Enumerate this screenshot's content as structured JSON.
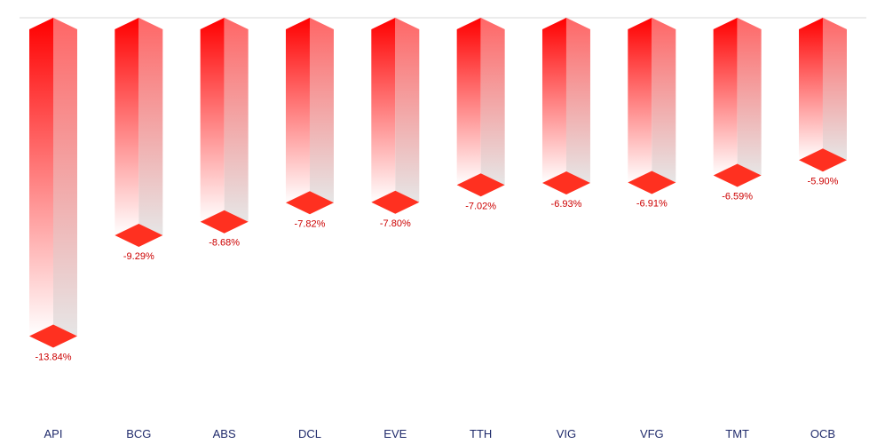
{
  "chart_data": {
    "type": "bar",
    "categories": [
      "API",
      "BCG",
      "ABS",
      "DCL",
      "EVE",
      "TTH",
      "VIG",
      "VFG",
      "TMT",
      "OCB"
    ],
    "values": [
      -13.84,
      -9.29,
      -8.68,
      -7.82,
      -7.8,
      -7.02,
      -6.93,
      -6.91,
      -6.59,
      -5.9
    ],
    "value_labels": [
      "-13.84%",
      "-9.29%",
      "-8.68%",
      "-7.82%",
      "-7.80%",
      "-7.02%",
      "-6.93%",
      "-6.91%",
      "-6.59%",
      "-5.90%"
    ],
    "title": "",
    "xlabel": "",
    "ylabel": "",
    "ylim": [
      -15.7,
      0
    ],
    "grid": false,
    "legend": "none",
    "colors": {
      "bar_top": "#ff0000",
      "bar_bottom": "#ffffff",
      "bar_side_top": "#ff6666",
      "bar_side_bottom": "#e6e6e6",
      "diamond": "#ff3020",
      "value_label": "#cc0000",
      "category_label": "#1f2a6b",
      "baseline": "#d9d9d9"
    }
  }
}
